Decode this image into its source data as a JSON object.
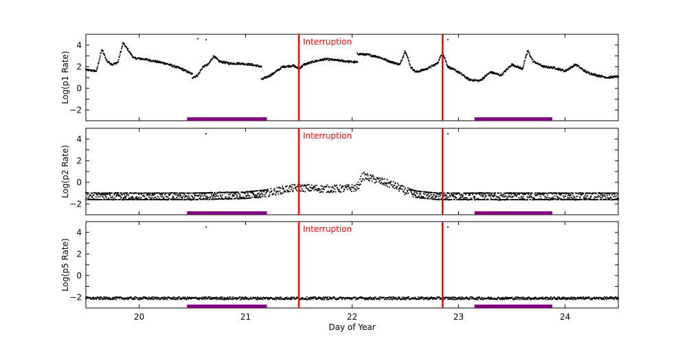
{
  "chart_data": [
    {
      "type": "scatter",
      "ylabel": "Log(p1 Rate)",
      "xlim": [
        19.5,
        24.5
      ],
      "ylim": [
        -3,
        5
      ],
      "yticks": [
        -2,
        0,
        2,
        4
      ],
      "xticks": [
        20,
        21,
        22,
        23,
        24
      ],
      "xlabel": "",
      "annotation": "Interruption",
      "interruptions": [
        21.5,
        22.85
      ],
      "bars": [
        [
          20.45,
          21.2
        ],
        [
          23.15,
          23.88
        ]
      ],
      "series": [
        {
          "points_main": [
            [
              19.5,
              1.7
            ],
            [
              19.6,
              1.6
            ],
            [
              19.65,
              3.6
            ],
            [
              19.7,
              2.5
            ],
            [
              19.75,
              2.2
            ],
            [
              19.8,
              2.4
            ],
            [
              19.85,
              4.2
            ],
            [
              19.9,
              3.5
            ],
            [
              19.95,
              2.8
            ],
            [
              20.05,
              2.7
            ],
            [
              20.15,
              2.5
            ],
            [
              20.25,
              2.3
            ],
            [
              20.4,
              1.8
            ],
            [
              20.5,
              1.3
            ],
            [
              20.6,
              1.0
            ],
            [
              20.7,
              1.2
            ],
            [
              20.8,
              1.0
            ],
            [
              20.95,
              1.0
            ],
            [
              21.05,
              1.0
            ],
            [
              21.15,
              0.8
            ],
            [
              21.25,
              1.3
            ],
            [
              21.35,
              2.0
            ],
            [
              21.45,
              2.1
            ],
            [
              21.5,
              1.8
            ],
            [
              21.55,
              2.2
            ],
            [
              21.65,
              2.5
            ],
            [
              21.75,
              2.7
            ],
            [
              21.85,
              2.6
            ],
            [
              21.95,
              2.5
            ],
            [
              22.05,
              2.4
            ]
          ],
          "points_mid": [
            [
              20.5,
              1.0
            ],
            [
              20.55,
              1.2
            ],
            [
              20.6,
              2.0
            ],
            [
              20.65,
              2.2
            ],
            [
              20.7,
              3.0
            ],
            [
              20.75,
              2.5
            ],
            [
              20.85,
              2.3
            ],
            [
              20.95,
              2.3
            ],
            [
              21.05,
              2.2
            ],
            [
              21.15,
              2.0
            ]
          ],
          "points_late": [
            [
              22.05,
              3.2
            ],
            [
              22.15,
              3.1
            ],
            [
              22.25,
              2.9
            ],
            [
              22.35,
              2.5
            ],
            [
              22.45,
              2.2
            ],
            [
              22.5,
              3.5
            ],
            [
              22.55,
              2.0
            ],
            [
              22.6,
              1.5
            ],
            [
              22.7,
              1.8
            ],
            [
              22.8,
              2.3
            ],
            [
              22.85,
              3.3
            ],
            [
              22.9,
              2.0
            ],
            [
              23.0,
              1.5
            ],
            [
              23.1,
              0.8
            ],
            [
              23.2,
              0.7
            ],
            [
              23.3,
              1.5
            ],
            [
              23.4,
              1.2
            ],
            [
              23.5,
              2.2
            ],
            [
              23.6,
              1.8
            ],
            [
              23.65,
              3.5
            ],
            [
              23.7,
              2.5
            ],
            [
              23.8,
              2.0
            ],
            [
              23.9,
              1.9
            ],
            [
              24.0,
              1.6
            ],
            [
              24.1,
              2.2
            ],
            [
              24.2,
              1.5
            ],
            [
              24.3,
              1.2
            ],
            [
              24.4,
              1.0
            ],
            [
              24.5,
              1.1
            ]
          ],
          "outliers": [
            [
              20.55,
              4.6
            ],
            [
              20.63,
              4.5
            ],
            [
              22.9,
              4.5
            ]
          ]
        }
      ]
    },
    {
      "type": "scatter",
      "ylabel": "Log(p2 Rate)",
      "xlim": [
        19.5,
        24.5
      ],
      "ylim": [
        -3,
        5
      ],
      "yticks": [
        -2,
        0,
        2,
        4
      ],
      "xticks": [
        20,
        21,
        22,
        23,
        24
      ],
      "xlabel": "",
      "annotation": "Interruption",
      "interruptions": [
        21.5,
        22.85
      ],
      "bars": [
        [
          20.45,
          21.2
        ],
        [
          23.15,
          23.88
        ]
      ],
      "series": [
        {
          "trend": [
            [
              19.5,
              -1.3
            ],
            [
              20.0,
              -1.3
            ],
            [
              20.5,
              -1.3
            ],
            [
              21.0,
              -1.2
            ],
            [
              21.2,
              -1.0
            ],
            [
              21.4,
              -0.6
            ],
            [
              21.5,
              -0.5
            ],
            [
              21.7,
              -0.6
            ],
            [
              21.9,
              -0.6
            ],
            [
              22.05,
              -0.5
            ],
            [
              22.1,
              0.6
            ],
            [
              22.2,
              0.3
            ],
            [
              22.3,
              0.0
            ],
            [
              22.4,
              -0.3
            ],
            [
              22.5,
              -0.8
            ],
            [
              22.6,
              -1.1
            ],
            [
              22.8,
              -1.3
            ],
            [
              23.0,
              -1.3
            ],
            [
              23.5,
              -1.3
            ],
            [
              24.0,
              -1.3
            ],
            [
              24.5,
              -1.3
            ]
          ],
          "spread": 0.35,
          "outliers": [
            [
              20.63,
              4.5
            ],
            [
              22.9,
              4.5
            ]
          ]
        }
      ]
    },
    {
      "type": "scatter",
      "ylabel": "Log(p5 Rate)",
      "xlim": [
        19.5,
        24.5
      ],
      "ylim": [
        -3,
        5
      ],
      "yticks": [
        -2,
        0,
        2,
        4
      ],
      "xticks": [
        20,
        21,
        22,
        23,
        24
      ],
      "xlabel": "Day of Year",
      "annotation": "Interruption",
      "interruptions": [
        21.5,
        22.85
      ],
      "bars": [
        [
          20.45,
          21.2
        ],
        [
          23.15,
          23.88
        ]
      ],
      "series": [
        {
          "trend": [
            [
              19.5,
              -2.1
            ],
            [
              24.5,
              -2.1
            ]
          ],
          "spread": 0.12,
          "outliers": [
            [
              20.63,
              4.5
            ],
            [
              22.9,
              4.5
            ]
          ]
        }
      ]
    }
  ],
  "colors": {
    "points": "#000000",
    "interruption": "#ff0000",
    "bar": "#800080"
  }
}
